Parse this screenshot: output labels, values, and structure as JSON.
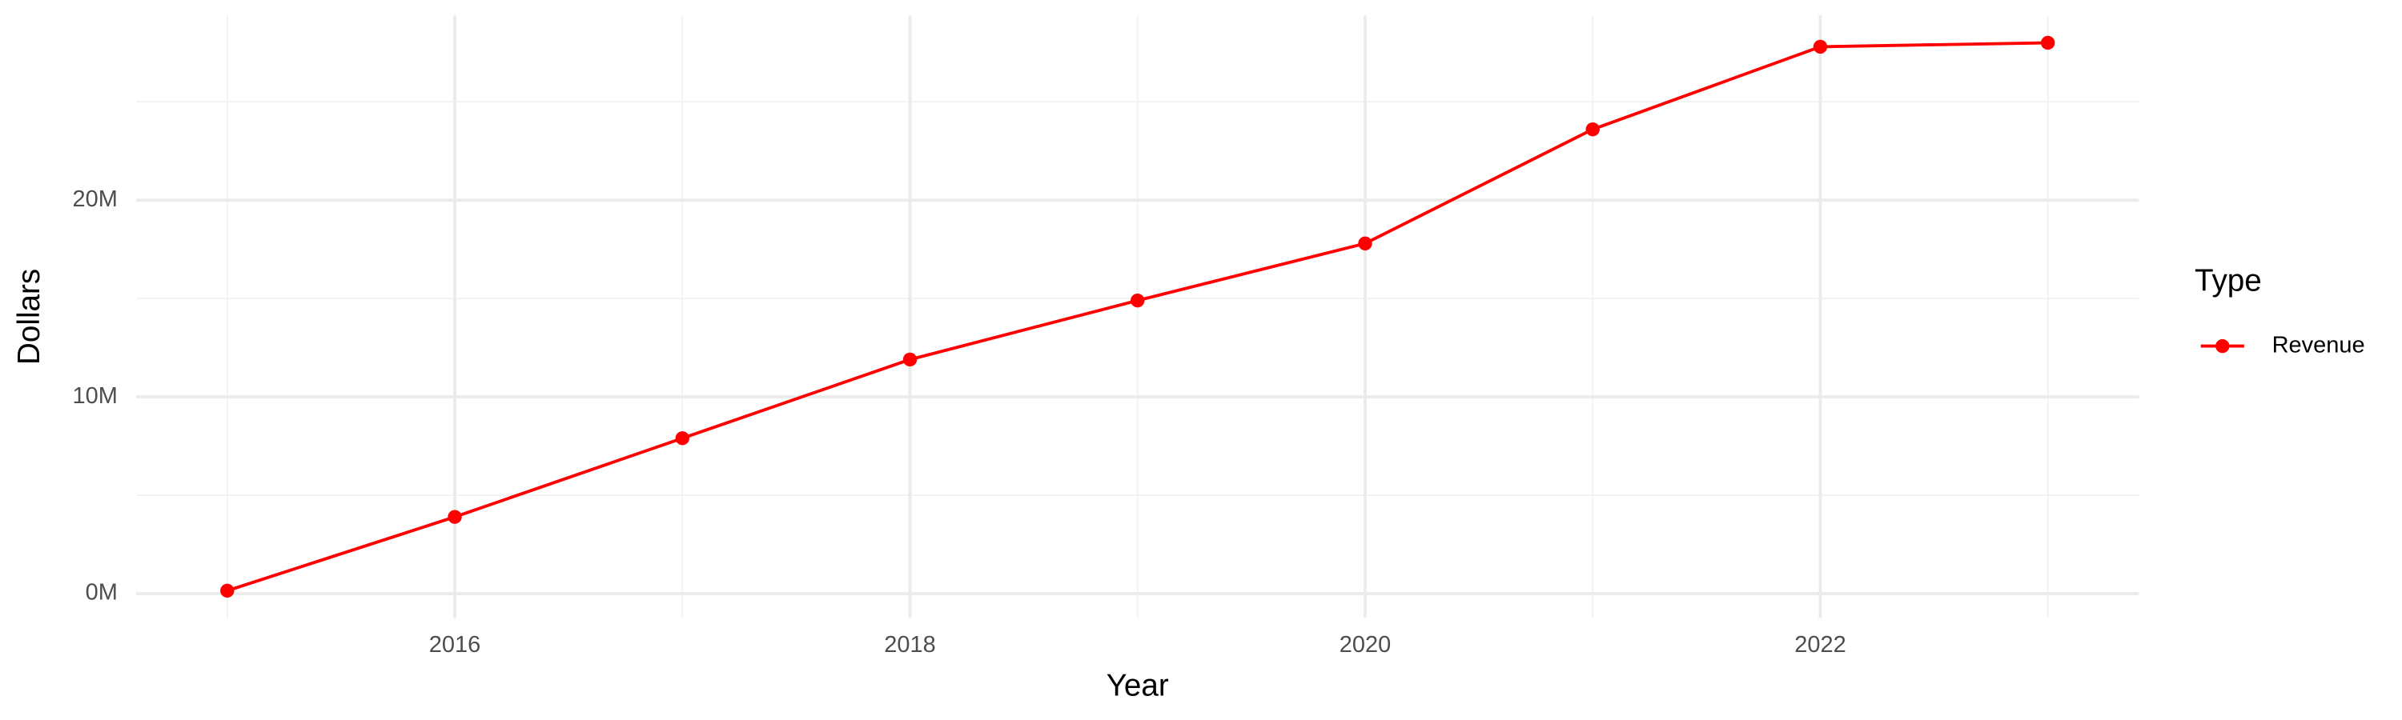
{
  "chart_data": {
    "type": "line",
    "x_label": "Year",
    "y_label": "Dollars",
    "legend_title": "Type",
    "x": [
      2015,
      2016,
      2017,
      2018,
      2019,
      2020,
      2021,
      2022,
      2023
    ],
    "series": [
      {
        "name": "Revenue",
        "color": "#ff0000",
        "values": [
          150000,
          3900000,
          7900000,
          11900000,
          14900000,
          17800000,
          23600000,
          27800000,
          28000000
        ]
      }
    ],
    "xlim": [
      2014.6,
      2023.4
    ],
    "xticks": [
      2016,
      2018,
      2020,
      2022
    ],
    "ylim": [
      -1240000,
      29390000
    ],
    "yticks": [
      {
        "value": 0,
        "label": "0M"
      },
      {
        "value": 10000000,
        "label": "10M"
      },
      {
        "value": 20000000,
        "label": "20M"
      }
    ],
    "grid": true,
    "legend_position": "right"
  }
}
